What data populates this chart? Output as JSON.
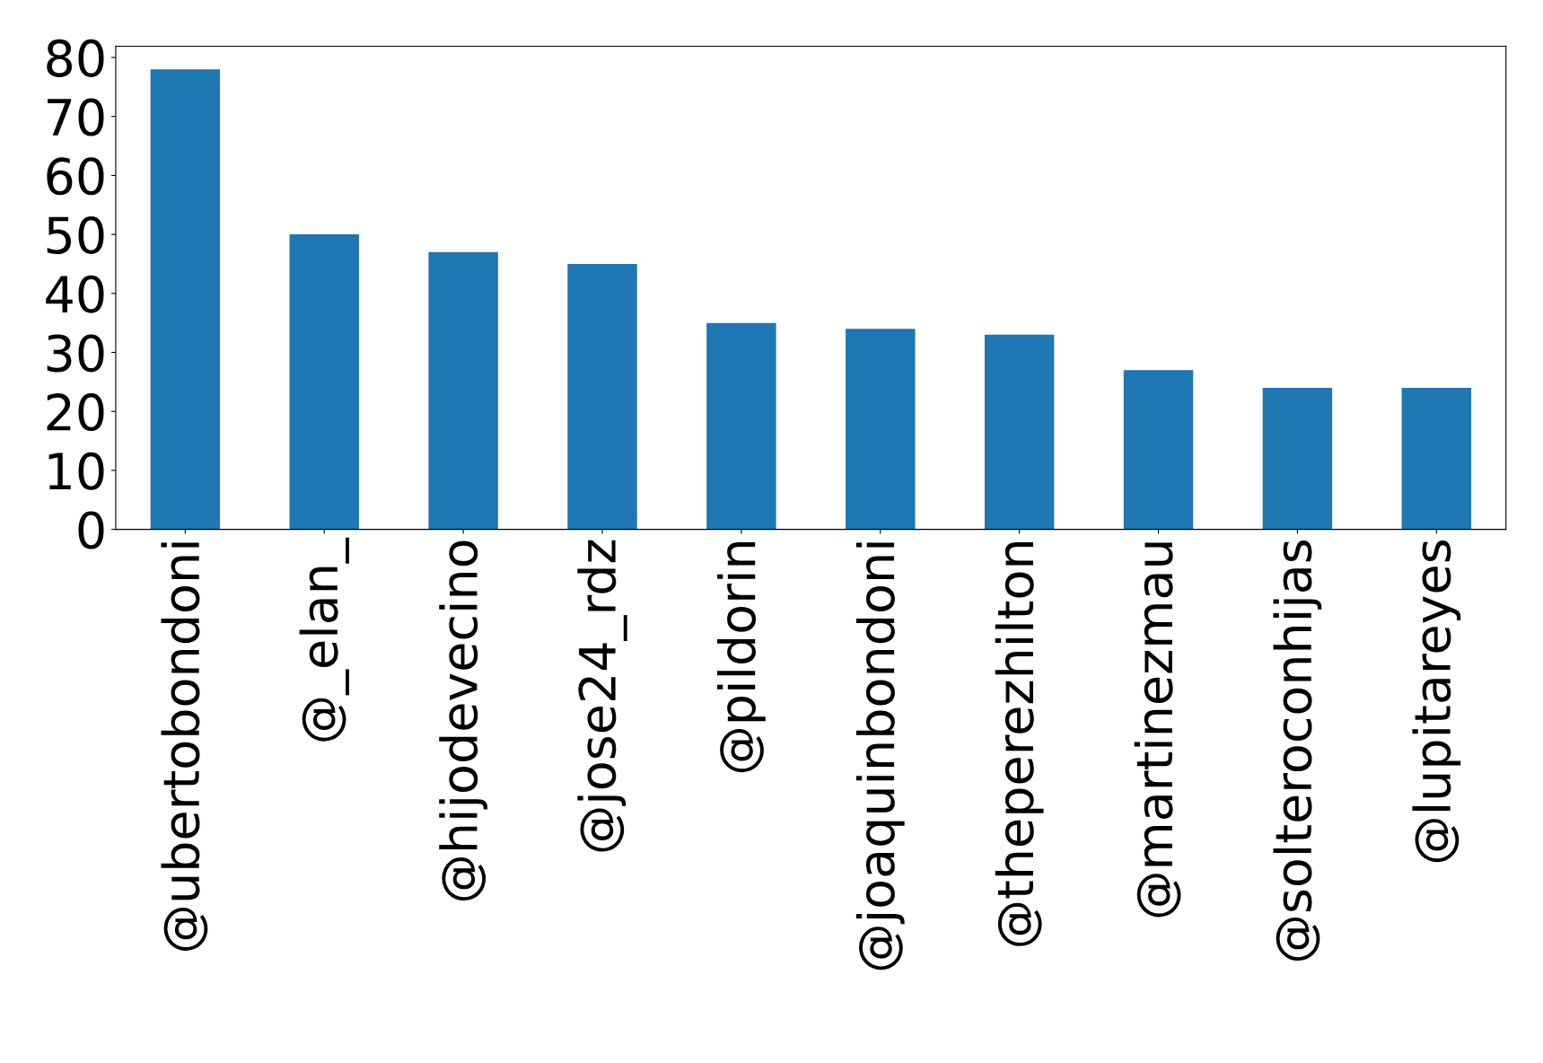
{
  "chart_data": {
    "type": "bar",
    "categories": [
      "@ubertobondoni",
      "@_elan_",
      "@hijodevecino",
      "@jose24_rdz",
      "@pildorin",
      "@joaquinbondoni",
      "@theperezhilton",
      "@martinezmau",
      "@solteroconhijas",
      "@lupitareyes"
    ],
    "values": [
      78,
      50,
      47,
      45,
      35,
      34,
      33,
      27,
      24,
      24
    ],
    "color": "#1f77b4",
    "ylim": [
      0,
      81.9
    ],
    "yticks": [
      0,
      10,
      20,
      30,
      40,
      50,
      60,
      70,
      80
    ],
    "grid": false,
    "legend": false
  }
}
